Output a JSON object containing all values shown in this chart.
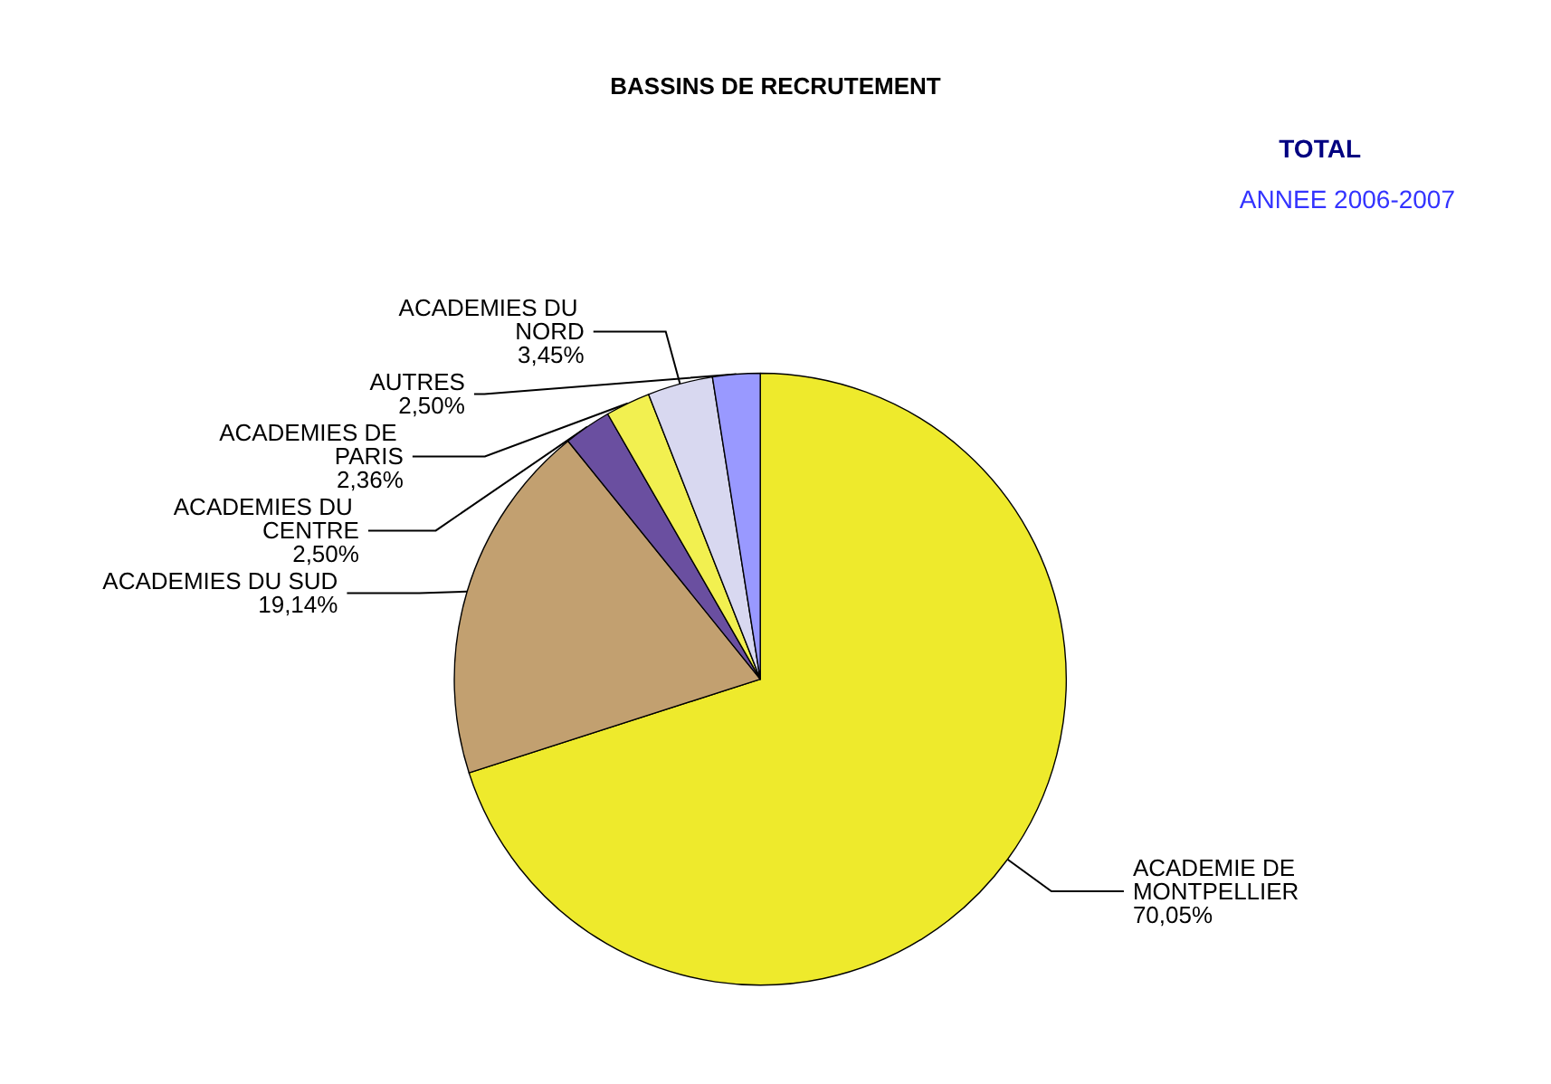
{
  "chart_data": {
    "type": "pie",
    "title": "BASSINS DE RECRUTEMENT",
    "subtitle": "TOTAL",
    "annotations": [
      "ANNEE 2006-2007"
    ],
    "categories": [
      "ACADEMIE DE MONTPELLIER",
      "ACADEMIES DU SUD",
      "ACADEMIES DU CENTRE",
      "ACADEMIES DE PARIS",
      "ACADEMIES DU NORD",
      "AUTRES"
    ],
    "values": [
      70.05,
      19.14,
      2.5,
      2.36,
      3.45,
      2.5
    ],
    "colors": [
      "#eeea2c",
      "#c2a070",
      "#6a4fa0",
      "#f2f050",
      "#d8d8f0",
      "#9999ff"
    ],
    "value_labels": [
      "70,05%",
      "19,14%",
      "2,50%",
      "2,36%",
      "3,45%",
      "2,50%"
    ],
    "legend": false
  }
}
